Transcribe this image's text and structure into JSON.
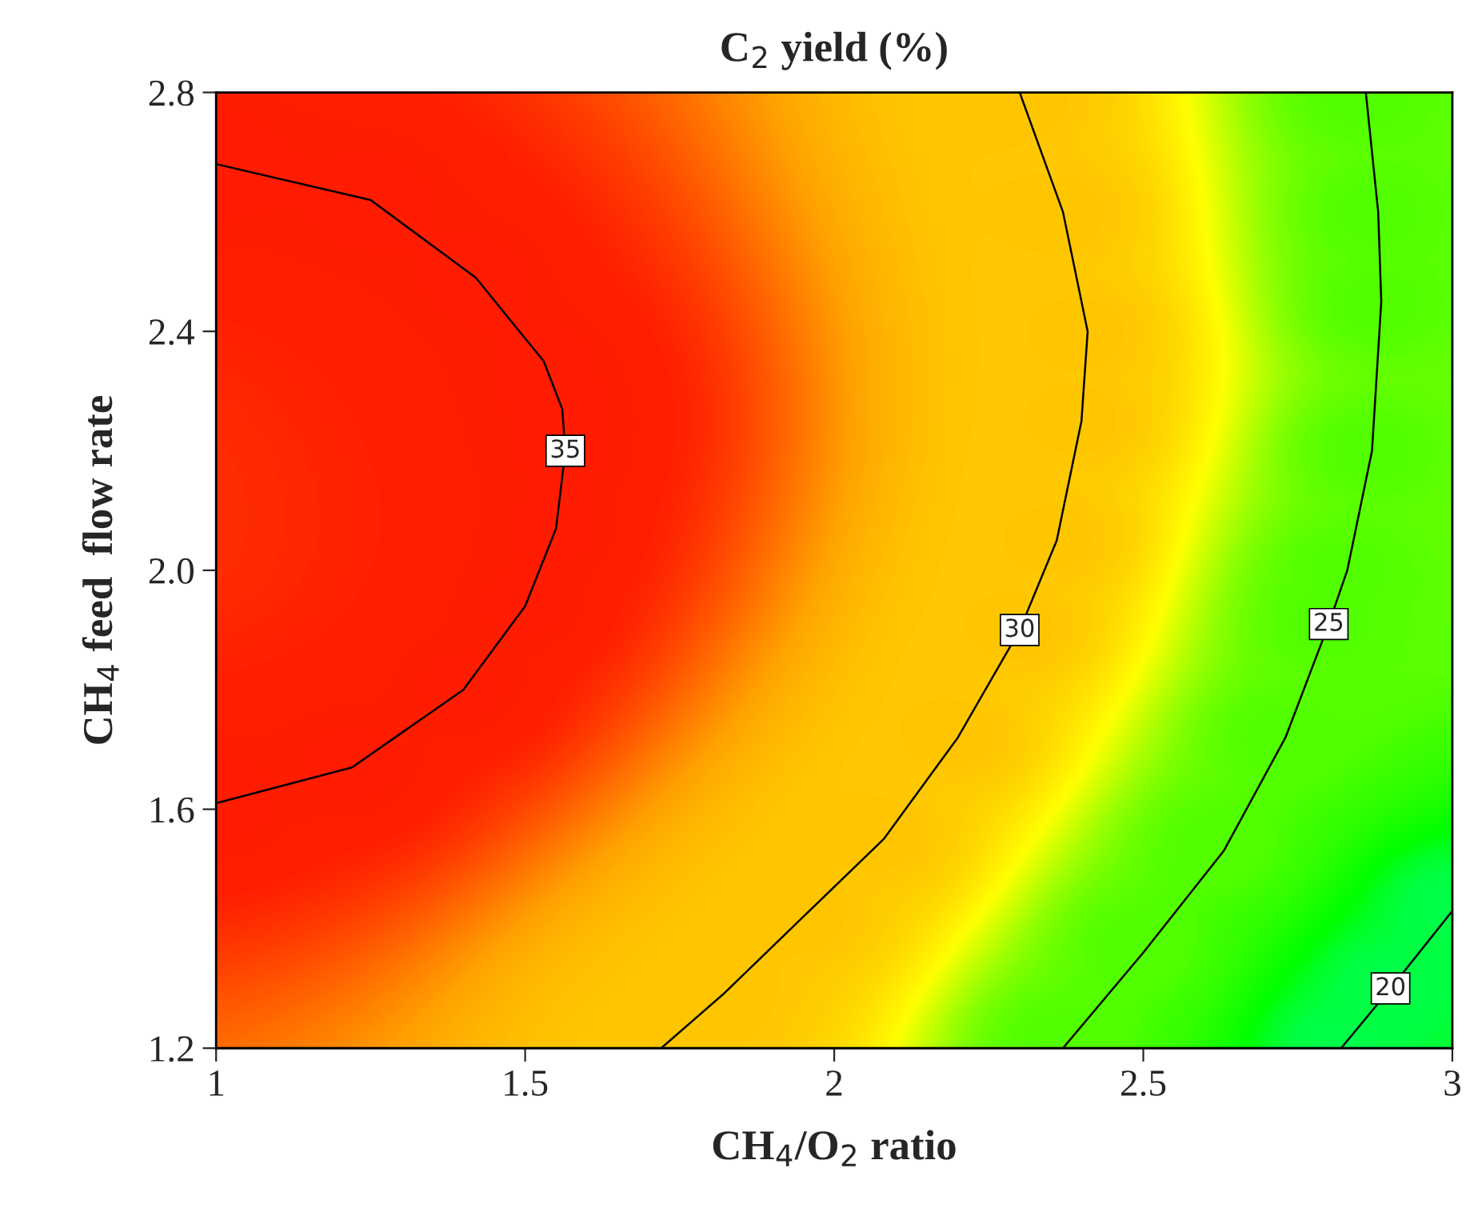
{
  "chart_data": {
    "type": "line",
    "title": "C$_{2}$ yield (%)",
    "xlabel": "CH$_{4}$/O$_{2}$ ratio",
    "ylabel": "CH$_{4}$ feed  flow rate",
    "series": [
      {
        "name": "35",
        "color": "#000000",
        "x": [
          1,
          1.25,
          1.42,
          1.53,
          1.56,
          1.565,
          1.55,
          1.5,
          1.4,
          1.22,
          1
        ],
        "values": [
          2.68,
          2.62,
          2.49,
          2.35,
          2.27,
          2.2,
          2.07,
          1.94,
          1.8,
          1.67,
          1.61
        ]
      },
      {
        "name": "30",
        "color": "#000000",
        "x": [
          2.3,
          2.37,
          2.41,
          2.4,
          2.36,
          2.3,
          2.2,
          2.08,
          1.95,
          1.82,
          1.72
        ],
        "values": [
          2.8,
          2.6,
          2.4,
          2.25,
          2.05,
          1.9,
          1.72,
          1.55,
          1.42,
          1.29,
          1.2
        ]
      },
      {
        "name": "25",
        "color": "#000000",
        "x": [
          2.86,
          2.88,
          2.885,
          2.87,
          2.83,
          2.8,
          2.73,
          2.63,
          2.5,
          2.37
        ],
        "values": [
          2.8,
          2.6,
          2.45,
          2.2,
          2.0,
          1.91,
          1.72,
          1.53,
          1.36,
          1.2
        ]
      },
      {
        "name": "20",
        "color": "#000000",
        "x": [
          2.82,
          2.9,
          3
        ],
        "values": [
          1.2,
          1.3,
          1.43
        ]
      }
    ],
    "xlim": [
      1,
      3
    ],
    "xticks": [
      1,
      1.5,
      2,
      2.5,
      3
    ],
    "ylim": [
      1.2,
      2.8
    ],
    "yticks": [
      1.2,
      1.6,
      {
        "value": 2.0,
        "label": "2.0"
      },
      2.4,
      2.8
    ],
    "legend": false,
    "grid": false
  }
}
